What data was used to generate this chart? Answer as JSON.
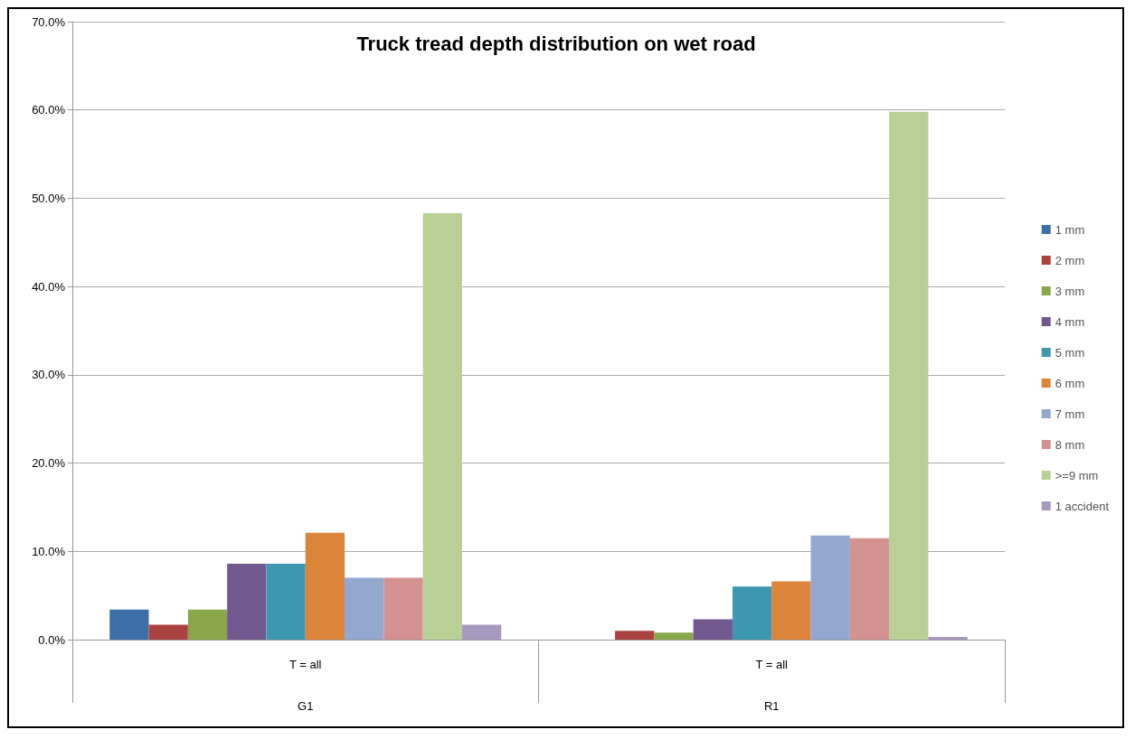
{
  "chart_data": {
    "type": "bar",
    "title": "Truck tread depth distribution on wet road",
    "categories": [
      "T = all\nG1",
      "T = all\nR1"
    ],
    "series": [
      {
        "name": "1 mm",
        "color": "#3c6ea8",
        "values": [
          3.4,
          0
        ]
      },
      {
        "name": "2 mm",
        "color": "#aa4340",
        "values": [
          1.7,
          1.0
        ]
      },
      {
        "name": "3 mm",
        "color": "#88a64a",
        "values": [
          3.4,
          0.8
        ]
      },
      {
        "name": "4 mm",
        "color": "#71588f",
        "values": [
          8.6,
          2.3
        ]
      },
      {
        "name": "5 mm",
        "color": "#3e97b0",
        "values": [
          8.6,
          6.0
        ]
      },
      {
        "name": "6 mm",
        "color": "#dc843a",
        "values": [
          12.1,
          6.6
        ]
      },
      {
        "name": "7 mm",
        "color": "#93a8cf",
        "values": [
          7.0,
          11.8
        ]
      },
      {
        "name": "8 mm",
        "color": "#d39290",
        "values": [
          7.0,
          11.5
        ]
      },
      {
        "name": ">=9 mm",
        "color": "#b8cf95",
        "values": [
          48.3,
          59.8
        ]
      },
      {
        "name": "1 accident",
        "color": "#a799bf",
        "values": [
          1.7,
          0.3
        ]
      }
    ],
    "ylim": [
      0,
      70
    ],
    "yticks": [
      {
        "value": 0,
        "label": "0.0%"
      },
      {
        "value": 10,
        "label": "10.0%"
      },
      {
        "value": 20,
        "label": "20.0%"
      },
      {
        "value": 30,
        "label": "30.0%"
      },
      {
        "value": 40,
        "label": "40.0%"
      },
      {
        "value": 50,
        "label": "50.0%"
      },
      {
        "value": 60,
        "label": "60.0%"
      },
      {
        "value": 70,
        "label": "70.0%"
      }
    ],
    "grid": "y",
    "legend": "right"
  }
}
